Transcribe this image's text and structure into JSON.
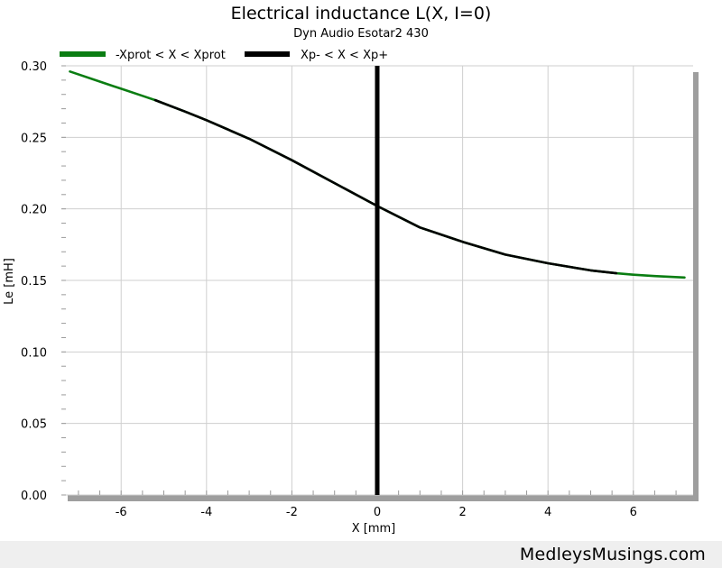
{
  "chart_data": {
    "type": "line",
    "title": "Electrical inductance L(X, I=0)",
    "subtitle": "Dyn Audio Esotar2 430",
    "xlabel": "X [mm]",
    "ylabel": "Le [mH]",
    "xlim": [
      -7.4,
      7.4
    ],
    "ylim": [
      0,
      0.3
    ],
    "x_ticks": [
      -6,
      -4,
      -2,
      0,
      2,
      4,
      6
    ],
    "y_ticks": [
      0.0,
      0.05,
      0.1,
      0.15,
      0.2,
      0.25,
      0.3
    ],
    "grid": true,
    "legend_placement": "top-left",
    "reference_line_x": 0,
    "series": [
      {
        "name": "-Xprot < X < Xprot",
        "color": "#0a7d12",
        "x": [
          -7.2,
          -6.5,
          -6.0,
          -5.5,
          -5.2,
          -4.5,
          -4.0,
          -3.0,
          -2.0,
          -1.0,
          0.0,
          1.0,
          2.0,
          3.0,
          4.0,
          5.0,
          5.6,
          6.0,
          6.5,
          7.2
        ],
        "values": [
          0.296,
          0.289,
          0.284,
          0.279,
          0.276,
          0.268,
          0.262,
          0.249,
          0.234,
          0.218,
          0.202,
          0.187,
          0.177,
          0.168,
          0.162,
          0.157,
          0.155,
          0.154,
          0.153,
          0.152
        ]
      },
      {
        "name": "Xp- < X < Xp+",
        "color": "#000000",
        "x": [
          -5.2,
          -4.5,
          -4.0,
          -3.0,
          -2.0,
          -1.0,
          0.0,
          1.0,
          2.0,
          3.0,
          4.0,
          5.0,
          5.6
        ],
        "values": [
          0.276,
          0.268,
          0.262,
          0.249,
          0.234,
          0.218,
          0.202,
          0.187,
          0.177,
          0.168,
          0.162,
          0.157,
          0.155
        ]
      }
    ]
  },
  "footer": {
    "brand": "MedleysMusings.com"
  }
}
